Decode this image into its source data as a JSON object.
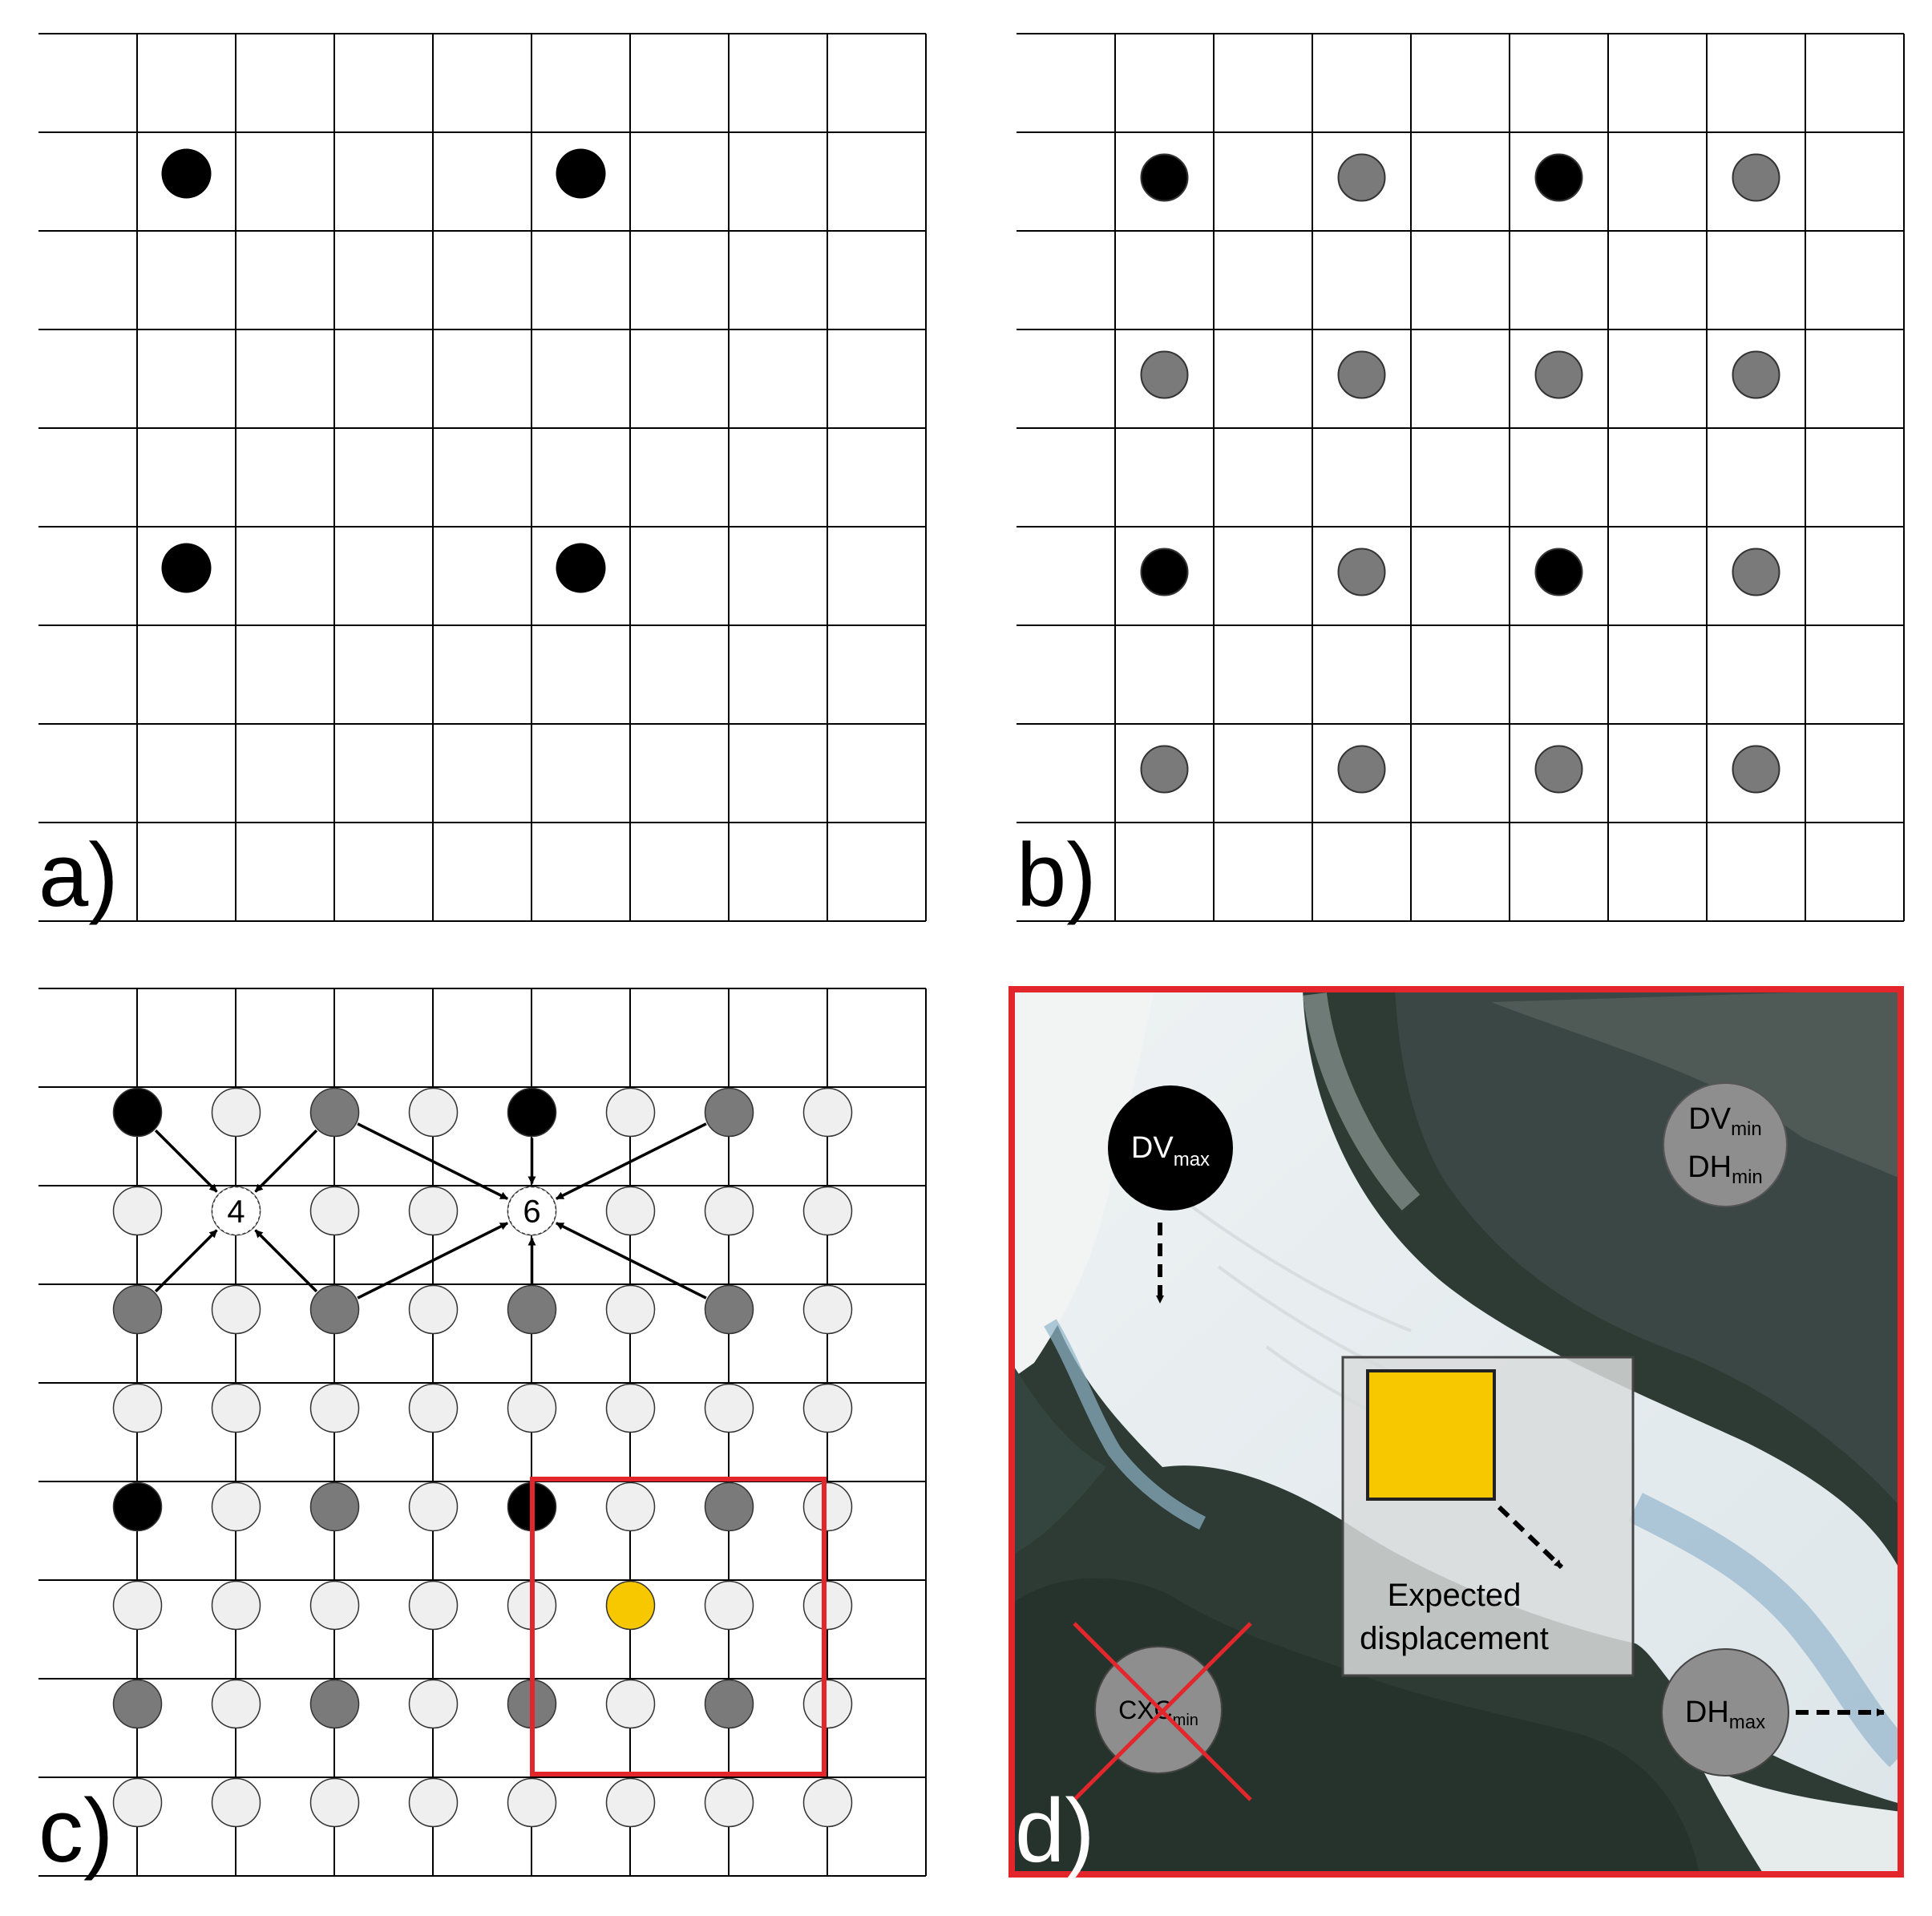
{
  "panels": {
    "a": {
      "label": "a)"
    },
    "b": {
      "label": "b)"
    },
    "c": {
      "label": "c)",
      "numbers": {
        "four": "4",
        "six": "6"
      }
    },
    "d": {
      "label": "d)",
      "dv_max": {
        "main": "DV",
        "sub": "max"
      },
      "dv_min": {
        "main": "DV",
        "sub": "min"
      },
      "dh_min": {
        "main": "DH",
        "sub": "min"
      },
      "dh_max": {
        "main": "DH",
        "sub": "max"
      },
      "cxc_min": {
        "main": "CXC",
        "sub": "min"
      },
      "expected_line1": "Expected",
      "expected_line2": "displacement"
    }
  },
  "colors": {
    "black_point": "#000000",
    "grey_point": "#7a7a7a",
    "light_point": "#efefef",
    "yellow": "#f7c800",
    "red": "#e3262b"
  }
}
